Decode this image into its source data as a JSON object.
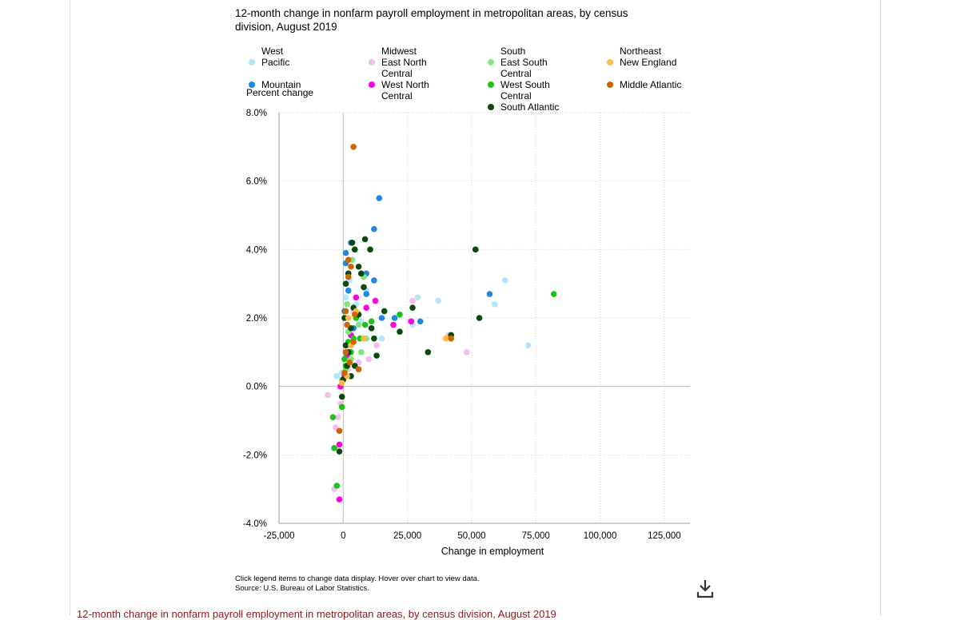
{
  "chart_data": {
    "type": "scatter",
    "title": "12-month change in nonfarm payroll employment in metropolitan areas, by census division, August 2019",
    "xlabel": "Change in employment",
    "ylabel": "Percent change",
    "xlim": [
      -25000,
      135000
    ],
    "ylim": [
      -4.0,
      8.0
    ],
    "x_ticks": [
      "-25,000",
      "0",
      "25,000",
      "50,000",
      "75,000",
      "100,000",
      "125,000"
    ],
    "x_tick_values": [
      -25000,
      0,
      25000,
      50000,
      75000,
      100000,
      125000
    ],
    "y_ticks": [
      "8.0%",
      "6.0%",
      "4.0%",
      "2.0%",
      "0.0%",
      "-2.0%",
      "-4.0%"
    ],
    "y_tick_values": [
      8,
      6,
      4,
      2,
      0,
      -2,
      -4
    ],
    "grid": true,
    "legend_placement": "top",
    "legend_groups": [
      {
        "title": "West",
        "items": [
          "Pacific",
          "Mountain"
        ]
      },
      {
        "title": "Midwest",
        "items": [
          "East North Central",
          "West North Central"
        ]
      },
      {
        "title": "South",
        "items": [
          "East South Central",
          "West South Central",
          "South Atlantic"
        ]
      },
      {
        "title": "Northeast",
        "items": [
          "New England",
          "Middle Atlantic"
        ]
      }
    ],
    "series": [
      {
        "name": "Pacific",
        "color": "#b3e5fc",
        "points": [
          [
            1000,
            2.6
          ],
          [
            2500,
            3.1
          ],
          [
            5000,
            2.4
          ],
          [
            7000,
            1.9
          ],
          [
            9000,
            2.8
          ],
          [
            15000,
            1.4
          ],
          [
            27000,
            1.8
          ],
          [
            29000,
            2.6
          ],
          [
            37000,
            2.5
          ],
          [
            59000,
            2.4
          ],
          [
            63000,
            3.1
          ],
          [
            72000,
            1.2
          ],
          [
            2000,
            1.2
          ],
          [
            -500,
            0.4
          ],
          [
            -2500,
            0.3
          ]
        ]
      },
      {
        "name": "Mountain",
        "color": "#1e88e5",
        "points": [
          [
            14000,
            5.5
          ],
          [
            12000,
            4.6
          ],
          [
            3000,
            4.2
          ],
          [
            1000,
            3.9
          ],
          [
            1000,
            3.6
          ],
          [
            9000,
            3.3
          ],
          [
            12000,
            3.1
          ],
          [
            9000,
            2.7
          ],
          [
            15000,
            2.0
          ],
          [
            20000,
            2.0
          ],
          [
            30000,
            1.9
          ],
          [
            57000,
            2.7
          ],
          [
            2000,
            2.8
          ],
          [
            500,
            2.2
          ],
          [
            4000,
            1.7
          ]
        ]
      },
      {
        "name": "East North Central",
        "color": "#f8bbf0",
        "points": [
          [
            -6000,
            -0.25
          ],
          [
            -3000,
            -1.2
          ],
          [
            -3500,
            -3.0
          ],
          [
            -1500,
            0.0
          ],
          [
            -1000,
            -0.5
          ],
          [
            27000,
            2.5
          ],
          [
            26000,
            1.9
          ],
          [
            41000,
            1.5
          ],
          [
            48000,
            1.0
          ],
          [
            13000,
            1.2
          ],
          [
            10000,
            0.8
          ],
          [
            6000,
            0.7
          ],
          [
            4000,
            2.2
          ],
          [
            2000,
            0.5
          ],
          [
            -2000,
            -0.9
          ]
        ]
      },
      {
        "name": "West North Central",
        "color": "#ff00e6",
        "points": [
          [
            -1500,
            -3.3
          ],
          [
            -1500,
            -1.7
          ],
          [
            -1000,
            0.0
          ],
          [
            9000,
            2.3
          ],
          [
            12500,
            2.5
          ],
          [
            19500,
            1.8
          ],
          [
            26500,
            1.9
          ],
          [
            3000,
            1.5
          ],
          [
            1500,
            0.9
          ],
          [
            500,
            0.3
          ],
          [
            5000,
            2.6
          ]
        ]
      },
      {
        "name": "East South Central",
        "color": "#7ee87e",
        "points": [
          [
            3500,
            3.7
          ],
          [
            8000,
            3.2
          ],
          [
            1500,
            2.4
          ],
          [
            6000,
            1.8
          ],
          [
            9000,
            1.4
          ],
          [
            2000,
            1.6
          ],
          [
            3000,
            0.8
          ],
          [
            7000,
            1.0
          ],
          [
            1000,
            0.5
          ],
          [
            -500,
            0.2
          ]
        ]
      },
      {
        "name": "West South Central",
        "color": "#19c419",
        "points": [
          [
            -4000,
            -0.9
          ],
          [
            -3500,
            -1.8
          ],
          [
            -2500,
            -2.9
          ],
          [
            -500,
            -0.6
          ],
          [
            1000,
            0.6
          ],
          [
            3000,
            1.0
          ],
          [
            6500,
            1.4
          ],
          [
            8500,
            1.8
          ],
          [
            11000,
            1.9
          ],
          [
            22000,
            2.1
          ],
          [
            82000,
            2.7
          ],
          [
            4000,
            1.4
          ],
          [
            5000,
            2.0
          ],
          [
            2000,
            1.3
          ],
          [
            500,
            0.8
          ]
        ]
      },
      {
        "name": "South Atlantic",
        "color": "#0a4a0a",
        "points": [
          [
            -1500,
            -1.9
          ],
          [
            -500,
            -0.3
          ],
          [
            0,
            0.2
          ],
          [
            1000,
            1.2
          ],
          [
            500,
            2.0
          ],
          [
            1000,
            3.0
          ],
          [
            2000,
            3.3
          ],
          [
            3500,
            4.2
          ],
          [
            4500,
            4.0
          ],
          [
            8500,
            4.3
          ],
          [
            10500,
            4.0
          ],
          [
            8000,
            2.9
          ],
          [
            7000,
            3.3
          ],
          [
            6000,
            3.5
          ],
          [
            4000,
            2.3
          ],
          [
            6000,
            2.1
          ],
          [
            12000,
            1.4
          ],
          [
            13000,
            0.9
          ],
          [
            11000,
            1.7
          ],
          [
            16000,
            2.2
          ],
          [
            22000,
            1.6
          ],
          [
            27000,
            2.3
          ],
          [
            33000,
            1.0
          ],
          [
            42000,
            1.5
          ],
          [
            51500,
            4.0
          ],
          [
            53000,
            2.0
          ],
          [
            3000,
            1.7
          ],
          [
            2000,
            1.0
          ],
          [
            1500,
            0.6
          ],
          [
            3000,
            0.3
          ],
          [
            4500,
            0.6
          ]
        ]
      },
      {
        "name": "New England",
        "color": "#ffb84d",
        "points": [
          [
            2000,
            2.0
          ],
          [
            5000,
            2.2
          ],
          [
            8000,
            1.4
          ],
          [
            40000,
            1.4
          ],
          [
            3000,
            1.2
          ],
          [
            6000,
            0.5
          ],
          [
            1500,
            0.3
          ],
          [
            -500,
            0.1
          ]
        ]
      },
      {
        "name": "Middle Atlantic",
        "color": "#cc6600",
        "points": [
          [
            4000,
            7.0
          ],
          [
            2000,
            3.7
          ],
          [
            3000,
            3.5
          ],
          [
            2000,
            3.2
          ],
          [
            1000,
            2.2
          ],
          [
            4500,
            2.1
          ],
          [
            1500,
            1.8
          ],
          [
            4000,
            1.3
          ],
          [
            2500,
            0.7
          ],
          [
            6000,
            0.5
          ],
          [
            -1500,
            -1.3
          ],
          [
            500,
            0.4
          ],
          [
            42000,
            1.4
          ],
          [
            1000,
            1.0
          ]
        ]
      }
    ]
  },
  "notes": {
    "line1": "Click legend items to change data display. Hover over chart to view data.",
    "line2": "Source: U.S. Bureau of Labor Statistics."
  },
  "bottom_title": "12-month change in nonfarm payroll employment in metropolitan areas, by census division, August 2019",
  "icons": {
    "download": "download-icon"
  }
}
